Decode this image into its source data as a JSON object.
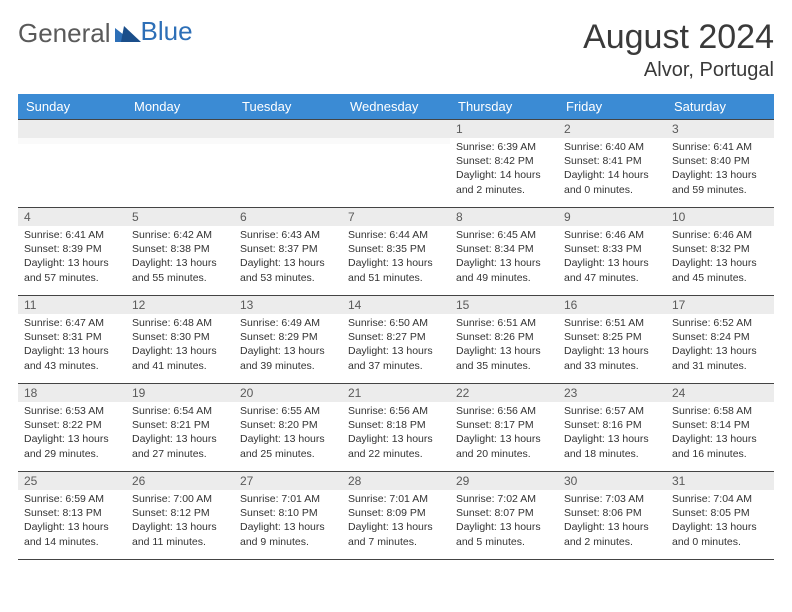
{
  "logo": {
    "text1": "General",
    "text2": "Blue"
  },
  "title": "August 2024",
  "location": "Alvor, Portugal",
  "colors": {
    "header_bg": "#3b8bd4",
    "header_text": "#ffffff",
    "daynum_bg": "#ececec",
    "border": "#444444",
    "logo_gray": "#5a5a5a",
    "logo_blue": "#2d6fb7"
  },
  "weekdays": [
    "Sunday",
    "Monday",
    "Tuesday",
    "Wednesday",
    "Thursday",
    "Friday",
    "Saturday"
  ],
  "weeks": [
    [
      {
        "n": "",
        "lines": [
          "",
          "",
          "",
          ""
        ]
      },
      {
        "n": "",
        "lines": [
          "",
          "",
          "",
          ""
        ]
      },
      {
        "n": "",
        "lines": [
          "",
          "",
          "",
          ""
        ]
      },
      {
        "n": "",
        "lines": [
          "",
          "",
          "",
          ""
        ]
      },
      {
        "n": "1",
        "lines": [
          "Sunrise: 6:39 AM",
          "Sunset: 8:42 PM",
          "Daylight: 14 hours",
          "and 2 minutes."
        ]
      },
      {
        "n": "2",
        "lines": [
          "Sunrise: 6:40 AM",
          "Sunset: 8:41 PM",
          "Daylight: 14 hours",
          "and 0 minutes."
        ]
      },
      {
        "n": "3",
        "lines": [
          "Sunrise: 6:41 AM",
          "Sunset: 8:40 PM",
          "Daylight: 13 hours",
          "and 59 minutes."
        ]
      }
    ],
    [
      {
        "n": "4",
        "lines": [
          "Sunrise: 6:41 AM",
          "Sunset: 8:39 PM",
          "Daylight: 13 hours",
          "and 57 minutes."
        ]
      },
      {
        "n": "5",
        "lines": [
          "Sunrise: 6:42 AM",
          "Sunset: 8:38 PM",
          "Daylight: 13 hours",
          "and 55 minutes."
        ]
      },
      {
        "n": "6",
        "lines": [
          "Sunrise: 6:43 AM",
          "Sunset: 8:37 PM",
          "Daylight: 13 hours",
          "and 53 minutes."
        ]
      },
      {
        "n": "7",
        "lines": [
          "Sunrise: 6:44 AM",
          "Sunset: 8:35 PM",
          "Daylight: 13 hours",
          "and 51 minutes."
        ]
      },
      {
        "n": "8",
        "lines": [
          "Sunrise: 6:45 AM",
          "Sunset: 8:34 PM",
          "Daylight: 13 hours",
          "and 49 minutes."
        ]
      },
      {
        "n": "9",
        "lines": [
          "Sunrise: 6:46 AM",
          "Sunset: 8:33 PM",
          "Daylight: 13 hours",
          "and 47 minutes."
        ]
      },
      {
        "n": "10",
        "lines": [
          "Sunrise: 6:46 AM",
          "Sunset: 8:32 PM",
          "Daylight: 13 hours",
          "and 45 minutes."
        ]
      }
    ],
    [
      {
        "n": "11",
        "lines": [
          "Sunrise: 6:47 AM",
          "Sunset: 8:31 PM",
          "Daylight: 13 hours",
          "and 43 minutes."
        ]
      },
      {
        "n": "12",
        "lines": [
          "Sunrise: 6:48 AM",
          "Sunset: 8:30 PM",
          "Daylight: 13 hours",
          "and 41 minutes."
        ]
      },
      {
        "n": "13",
        "lines": [
          "Sunrise: 6:49 AM",
          "Sunset: 8:29 PM",
          "Daylight: 13 hours",
          "and 39 minutes."
        ]
      },
      {
        "n": "14",
        "lines": [
          "Sunrise: 6:50 AM",
          "Sunset: 8:27 PM",
          "Daylight: 13 hours",
          "and 37 minutes."
        ]
      },
      {
        "n": "15",
        "lines": [
          "Sunrise: 6:51 AM",
          "Sunset: 8:26 PM",
          "Daylight: 13 hours",
          "and 35 minutes."
        ]
      },
      {
        "n": "16",
        "lines": [
          "Sunrise: 6:51 AM",
          "Sunset: 8:25 PM",
          "Daylight: 13 hours",
          "and 33 minutes."
        ]
      },
      {
        "n": "17",
        "lines": [
          "Sunrise: 6:52 AM",
          "Sunset: 8:24 PM",
          "Daylight: 13 hours",
          "and 31 minutes."
        ]
      }
    ],
    [
      {
        "n": "18",
        "lines": [
          "Sunrise: 6:53 AM",
          "Sunset: 8:22 PM",
          "Daylight: 13 hours",
          "and 29 minutes."
        ]
      },
      {
        "n": "19",
        "lines": [
          "Sunrise: 6:54 AM",
          "Sunset: 8:21 PM",
          "Daylight: 13 hours",
          "and 27 minutes."
        ]
      },
      {
        "n": "20",
        "lines": [
          "Sunrise: 6:55 AM",
          "Sunset: 8:20 PM",
          "Daylight: 13 hours",
          "and 25 minutes."
        ]
      },
      {
        "n": "21",
        "lines": [
          "Sunrise: 6:56 AM",
          "Sunset: 8:18 PM",
          "Daylight: 13 hours",
          "and 22 minutes."
        ]
      },
      {
        "n": "22",
        "lines": [
          "Sunrise: 6:56 AM",
          "Sunset: 8:17 PM",
          "Daylight: 13 hours",
          "and 20 minutes."
        ]
      },
      {
        "n": "23",
        "lines": [
          "Sunrise: 6:57 AM",
          "Sunset: 8:16 PM",
          "Daylight: 13 hours",
          "and 18 minutes."
        ]
      },
      {
        "n": "24",
        "lines": [
          "Sunrise: 6:58 AM",
          "Sunset: 8:14 PM",
          "Daylight: 13 hours",
          "and 16 minutes."
        ]
      }
    ],
    [
      {
        "n": "25",
        "lines": [
          "Sunrise: 6:59 AM",
          "Sunset: 8:13 PM",
          "Daylight: 13 hours",
          "and 14 minutes."
        ]
      },
      {
        "n": "26",
        "lines": [
          "Sunrise: 7:00 AM",
          "Sunset: 8:12 PM",
          "Daylight: 13 hours",
          "and 11 minutes."
        ]
      },
      {
        "n": "27",
        "lines": [
          "Sunrise: 7:01 AM",
          "Sunset: 8:10 PM",
          "Daylight: 13 hours",
          "and 9 minutes."
        ]
      },
      {
        "n": "28",
        "lines": [
          "Sunrise: 7:01 AM",
          "Sunset: 8:09 PM",
          "Daylight: 13 hours",
          "and 7 minutes."
        ]
      },
      {
        "n": "29",
        "lines": [
          "Sunrise: 7:02 AM",
          "Sunset: 8:07 PM",
          "Daylight: 13 hours",
          "and 5 minutes."
        ]
      },
      {
        "n": "30",
        "lines": [
          "Sunrise: 7:03 AM",
          "Sunset: 8:06 PM",
          "Daylight: 13 hours",
          "and 2 minutes."
        ]
      },
      {
        "n": "31",
        "lines": [
          "Sunrise: 7:04 AM",
          "Sunset: 8:05 PM",
          "Daylight: 13 hours",
          "and 0 minutes."
        ]
      }
    ]
  ]
}
